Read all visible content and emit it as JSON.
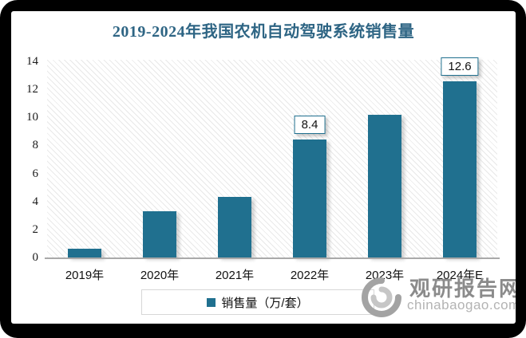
{
  "chart_data": {
    "type": "bar",
    "title": "2019-2024年我国农机自动驾驶系统销售量",
    "categories": [
      "2019年",
      "2020年",
      "2021年",
      "2022年",
      "2023年",
      "2024年E"
    ],
    "series": [
      {
        "name": "销售量（万/套）",
        "values": [
          0.6,
          3.3,
          4.3,
          8.4,
          10.2,
          12.6
        ]
      }
    ],
    "data_labels": [
      "",
      "",
      "",
      "8.4",
      "",
      "12.6"
    ],
    "xlabel": "",
    "ylabel": "",
    "ylim": [
      0,
      14
    ],
    "yticks": [
      0,
      2,
      4,
      6,
      8,
      10,
      12,
      14
    ],
    "grid": false,
    "legend_position": "bottom",
    "plot_background": "diagonal-hatch",
    "colors": {
      "bar": "#20708F",
      "title": "#2E6584",
      "label_box_border": "#20708F",
      "axis_line": "#a9a9a9"
    }
  },
  "legend": {
    "label": "销售量（万/套）"
  },
  "watermark": {
    "brand": "观研报告网",
    "domain": "chinabaogao.com"
  }
}
